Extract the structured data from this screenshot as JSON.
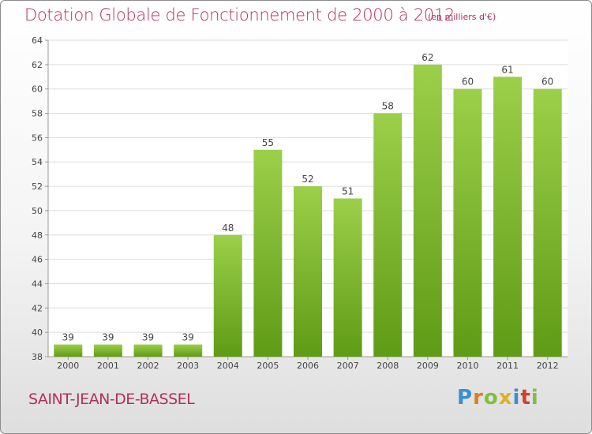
{
  "title": "Dotation Globale de Fonctionnement de 2000 à 2012",
  "subtitle": "(en milliers d'€)",
  "commune": "SAINT-JEAN-DE-BASSEL",
  "logo": "Proxiti",
  "colors": {
    "title": "#b03060",
    "bar_light": "#9ccf4a",
    "bar_dark": "#5f9b16",
    "grid": "#dddddd"
  },
  "chart_data": {
    "type": "bar",
    "title": "Dotation Globale de Fonctionnement de 2000 à 2012",
    "subtitle": "(en milliers d'€)",
    "categories": [
      "2000",
      "2001",
      "2002",
      "2003",
      "2004",
      "2005",
      "2006",
      "2007",
      "2008",
      "2009",
      "2010",
      "2011",
      "2012"
    ],
    "values": [
      39,
      39,
      39,
      39,
      48,
      55,
      52,
      51,
      58,
      62,
      60,
      61,
      60
    ],
    "ylim": [
      38,
      64
    ],
    "yticks": [
      38,
      40,
      42,
      44,
      46,
      48,
      50,
      52,
      54,
      56,
      58,
      60,
      62,
      64
    ],
    "grid": true,
    "xlabel": "",
    "ylabel": ""
  }
}
